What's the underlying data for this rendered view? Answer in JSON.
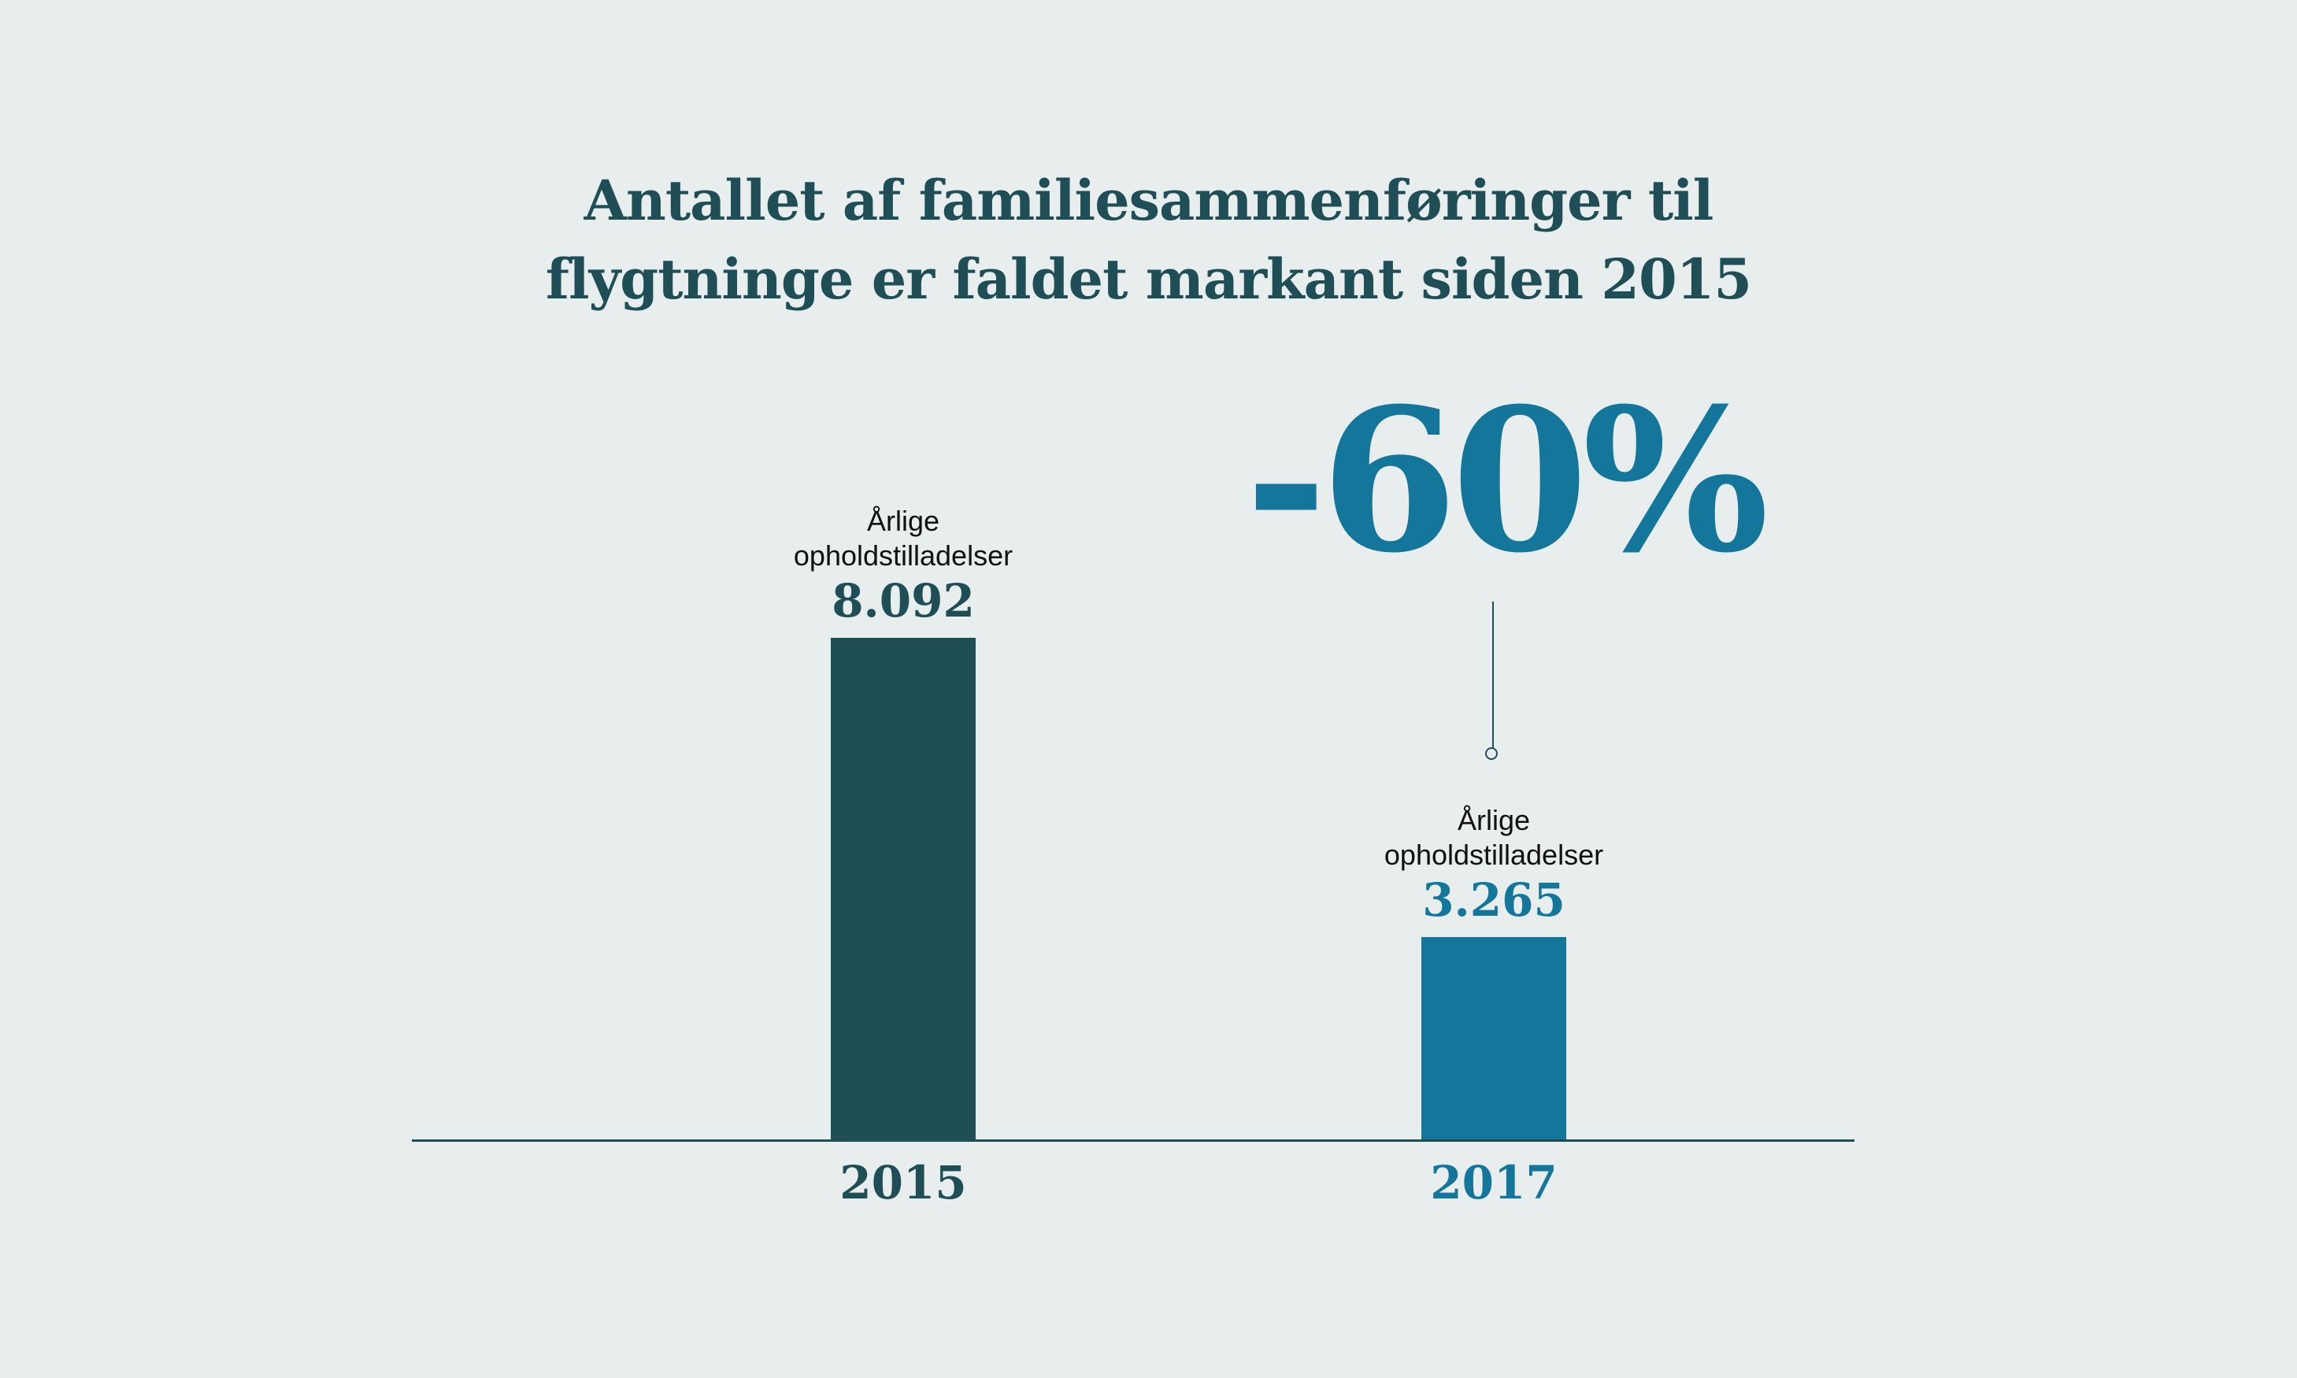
{
  "colors": {
    "background": "#e8eeee",
    "title": "#1f4e56",
    "bar_2015": "#1f4e56",
    "bar_2017": "#13769a",
    "axis": "#1f4e56"
  },
  "chart_data": {
    "type": "bar",
    "title_lines": [
      "Antallet af familiesammenføringer til",
      "flygtninge er faldet markant siden 2015"
    ],
    "categories": [
      "2015",
      "2017"
    ],
    "values": [
      8092,
      3265
    ],
    "value_labels": [
      "8.092",
      "3.265"
    ],
    "bar_caption_lines": [
      "Årlige",
      "opholdstilladelser"
    ],
    "change_label": "-60%",
    "xlabel": "",
    "ylabel": "",
    "ylim": [
      0,
      8092
    ],
    "grid": false
  }
}
